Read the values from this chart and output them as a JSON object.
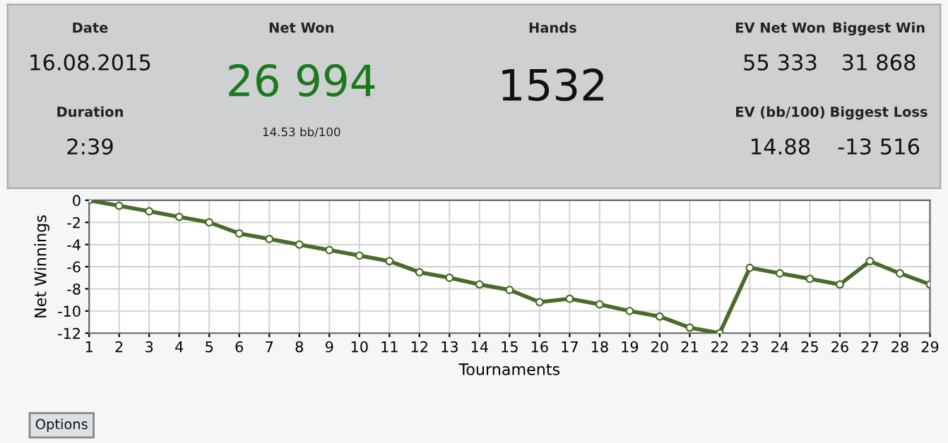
{
  "chart_data": [
    {
      "type": "other",
      "annotations": [
        "Date",
        "16.08.2015",
        "Duration",
        "2:39",
        "Net Won",
        "26 994",
        "14.53 bb/100",
        "Hands",
        "1532",
        "EV Net Won",
        "55 333",
        "Biggest Win",
        "31 868",
        "EV (bb/100)",
        "14.88",
        "Biggest Loss",
        "-13 516",
        "Options"
      ],
      "colors": [
        "#222222",
        "#111111",
        "#222222",
        "#111111",
        "#222222",
        "#1b7a1b",
        "#222222",
        "#222222",
        "#111111",
        "#222222",
        "#111111",
        "#222222",
        "#111111",
        "#222222",
        "#111111",
        "#222222",
        "#111111",
        "#111111"
      ]
    },
    {
      "type": "line",
      "xlabel": "Tournaments",
      "ylabel": "Net Winnings",
      "categories": [
        "1",
        "2",
        "3",
        "4",
        "5",
        "6",
        "7",
        "8",
        "9",
        "10",
        "11",
        "12",
        "13",
        "14",
        "15",
        "16",
        "17",
        "18",
        "19",
        "20",
        "21",
        "22",
        "23",
        "24",
        "25",
        "26",
        "27",
        "28",
        "29"
      ],
      "series": [
        {
          "color": "#4a6b2a",
          "values": [
            0,
            -0.5,
            -1,
            -1.5,
            -2,
            -3,
            -3.5,
            -4,
            -4.5,
            -5,
            -5.5,
            -6.5,
            -7,
            -7.6,
            -8.1,
            -9.2,
            -8.9,
            -9.4,
            -10,
            -10.5,
            -11.5,
            -12,
            -6.1,
            -6.6,
            -7.1,
            -7.6,
            -5.5,
            -6.6,
            -7.6
          ]
        }
      ],
      "ylim": [
        -12,
        0
      ],
      "yticks": [
        -12,
        -10,
        -8,
        -6,
        -4,
        -2,
        0
      ],
      "grid": true,
      "marker": "circle",
      "line_style": "solid"
    }
  ]
}
